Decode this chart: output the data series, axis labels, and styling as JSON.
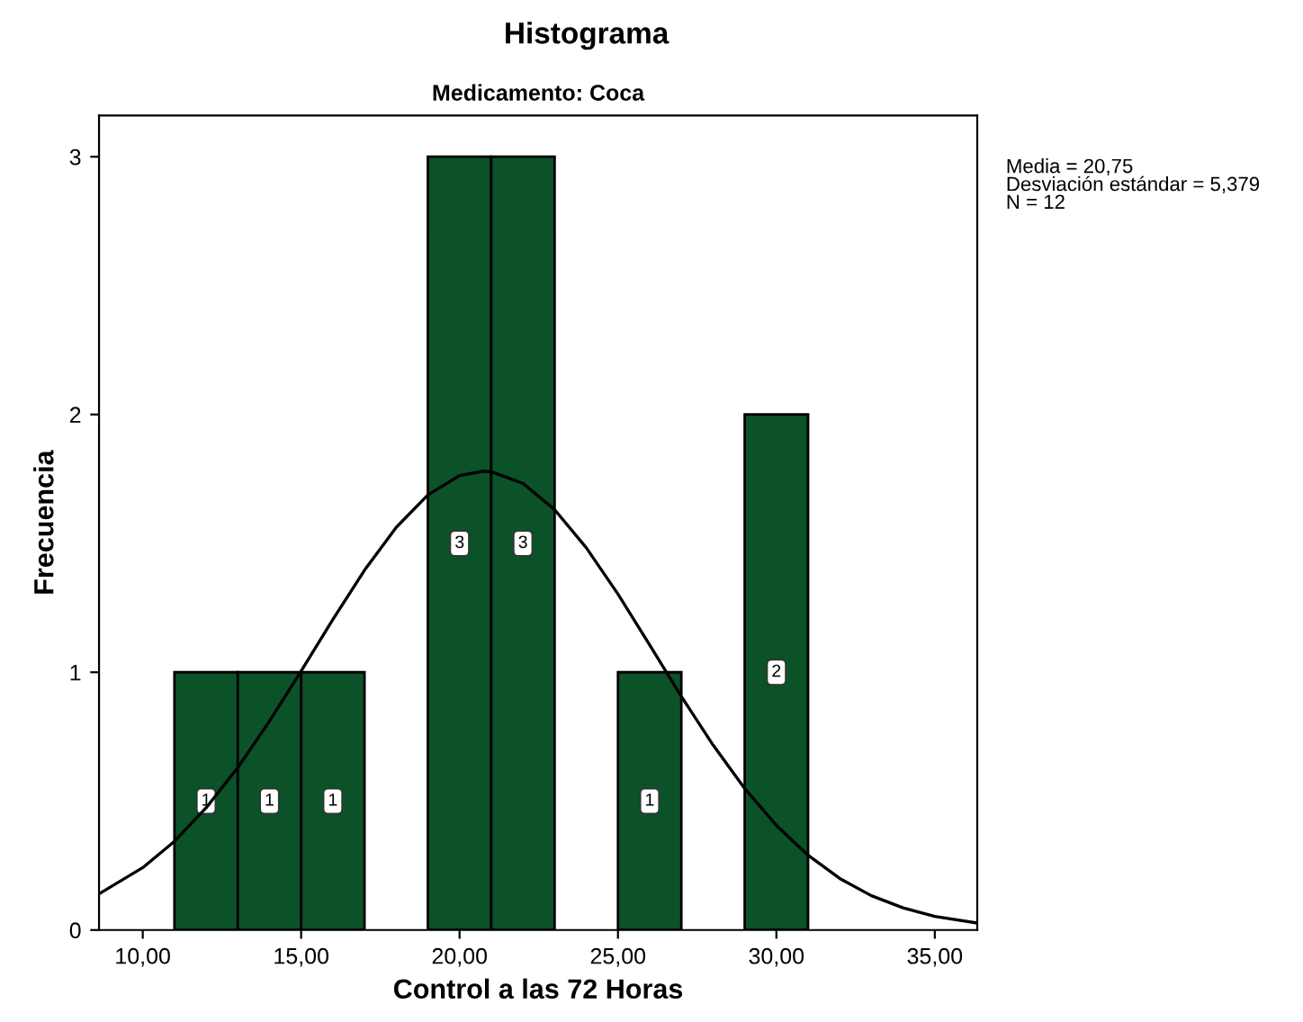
{
  "chart_data": {
    "type": "histogram",
    "title": "Histograma",
    "subtitle": "Medicamento: Coca",
    "xlabel": "Control a las 72 Horas",
    "ylabel": "Frecuencia",
    "annotations": [
      "Media = 20,75\nDesviación estándar = 5,379\nN = 12"
    ],
    "xlim": [
      8.62,
      36.34
    ],
    "xticks": [
      {
        "value": 10,
        "label": "10,00"
      },
      {
        "value": 15,
        "label": "15,00"
      },
      {
        "value": 20,
        "label": "20,00"
      },
      {
        "value": 25,
        "label": "25,00"
      },
      {
        "value": 30,
        "label": "30,00"
      },
      {
        "value": 35,
        "label": "35,00"
      }
    ],
    "ylim": [
      0,
      3.16
    ],
    "yticks": [
      0,
      1,
      2,
      3
    ],
    "grid": false,
    "series": [
      {
        "color": "#0b5229",
        "bins": [
          11,
          13,
          15,
          17,
          19,
          21,
          23,
          25,
          27,
          29,
          31
        ],
        "values": [
          1,
          1,
          1,
          0,
          3,
          3,
          0,
          1,
          0,
          2
        ],
        "value_labels": [
          "1",
          "1",
          "1",
          null,
          "3",
          "3",
          null,
          "1",
          null,
          "2"
        ]
      },
      {
        "type": "line",
        "color": "#000000",
        "line_style": "solid",
        "marker": "none",
        "x": [
          8.62,
          10,
          11,
          12,
          13,
          14,
          15,
          16,
          17,
          18,
          19,
          20,
          20.75,
          21,
          22,
          23,
          24,
          25,
          26,
          27,
          28,
          29,
          30,
          31,
          32,
          33,
          34,
          35,
          36.34
        ],
        "values": [
          0.14,
          0.242,
          0.344,
          0.474,
          0.63,
          0.81,
          1.005,
          1.205,
          1.396,
          1.562,
          1.688,
          1.763,
          1.78,
          1.778,
          1.733,
          1.631,
          1.483,
          1.303,
          1.106,
          0.906,
          0.718,
          0.549,
          0.406,
          0.29,
          0.2,
          0.133,
          0.086,
          0.053,
          0.027
        ]
      }
    ]
  }
}
